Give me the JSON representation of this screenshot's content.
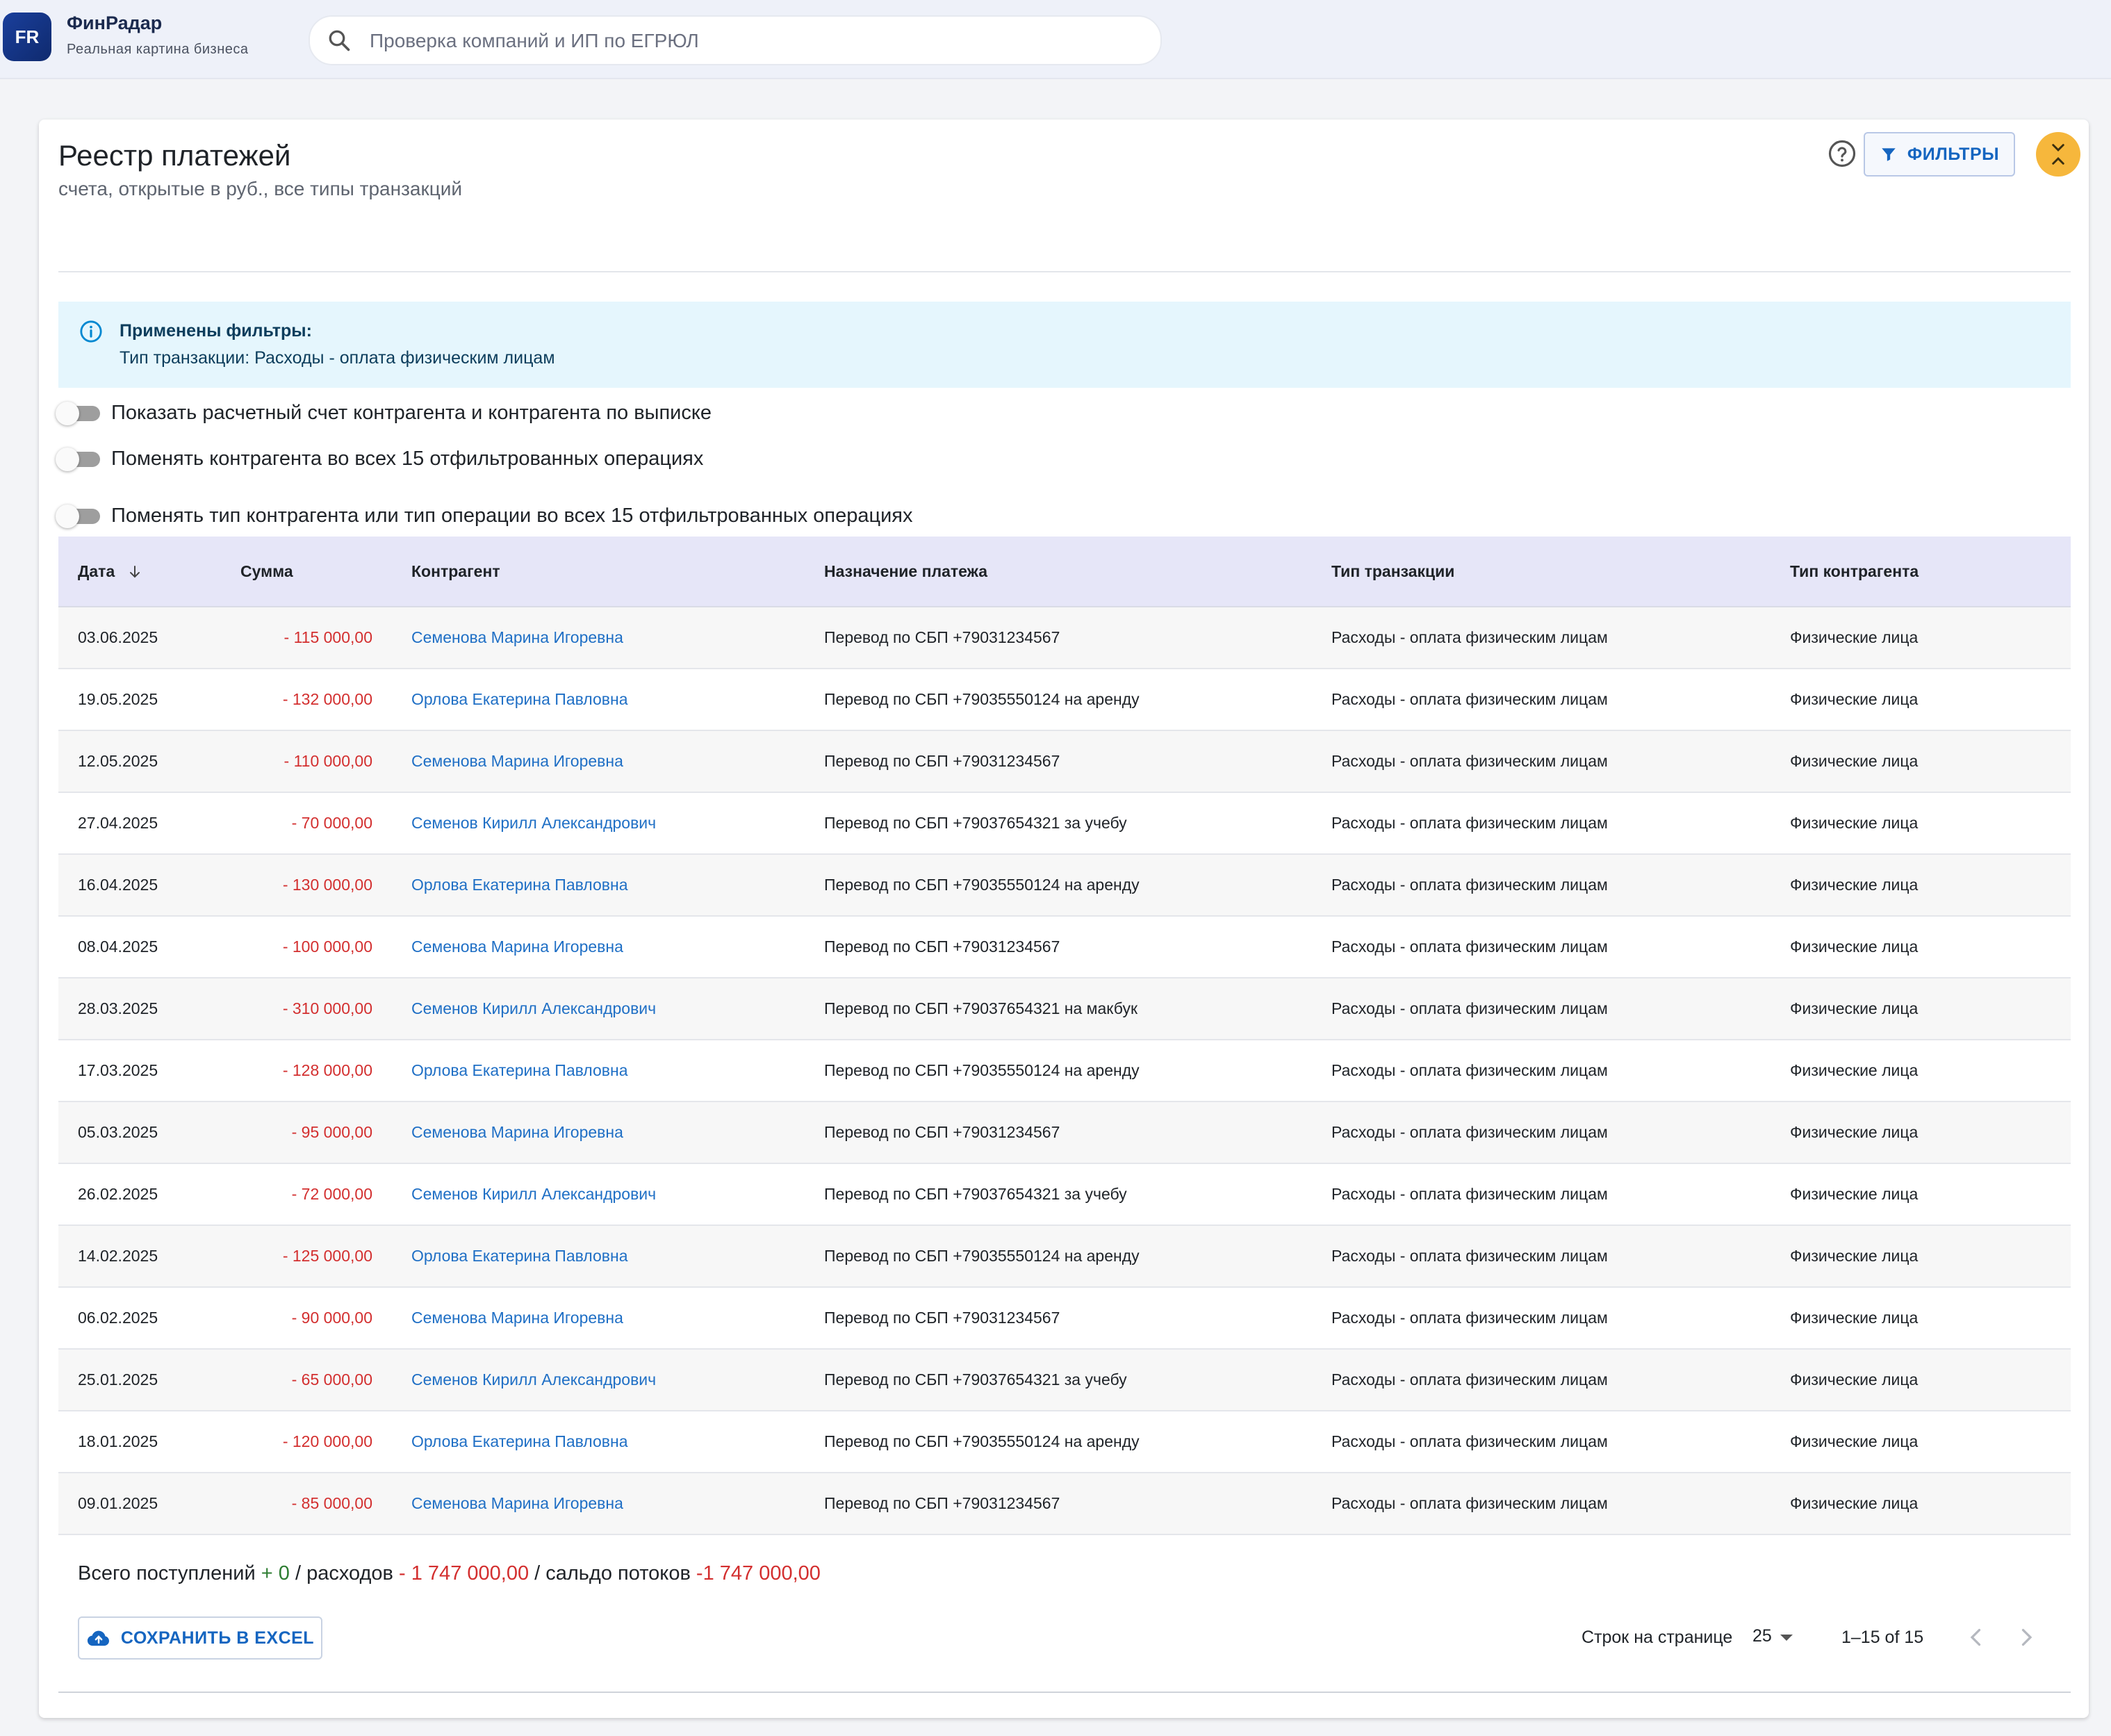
{
  "app": {
    "logo_text": "FR",
    "name": "ФинРадар",
    "tagline": "Реальная картина бизнеса"
  },
  "search": {
    "placeholder": "Проверка компаний и ИП по ЕГРЮЛ",
    "value": ""
  },
  "page": {
    "title": "Реестр платежей",
    "subtitle": "счета, открытые в руб., все типы транзакций",
    "filters_button": "ФИЛЬТРЫ"
  },
  "alert": {
    "title": "Применены фильтры:",
    "text": "Тип транзакции: Расходы - оплата физическим лицам"
  },
  "toggles": [
    {
      "label": "Показать расчетный счет контрагента и контрагента по выписке",
      "on": false
    },
    {
      "label": "Поменять контрагента во всех 15 отфильтрованных операциях",
      "on": false
    },
    {
      "label": "Поменять тип контрагента или тип операции во всех 15 отфильтрованных операциях",
      "on": false
    }
  ],
  "table": {
    "headers": {
      "date": "Дата",
      "amount": "Сумма",
      "counterparty": "Контрагент",
      "purpose": "Назначение платежа",
      "tx_type": "Тип транзакции",
      "party_type": "Тип контрагента"
    },
    "rows": [
      {
        "date": "03.06.2025",
        "amount": "- 115 000,00",
        "counterparty": "Семенова Марина Игоревна",
        "purpose": "Перевод по СБП +79031234567",
        "tx_type": "Расходы - оплата физическим лицам",
        "party_type": "Физические лица"
      },
      {
        "date": "19.05.2025",
        "amount": "- 132 000,00",
        "counterparty": "Орлова Екатерина Павловна",
        "purpose": "Перевод по СБП +79035550124 на аренду",
        "tx_type": "Расходы - оплата физическим лицам",
        "party_type": "Физические лица"
      },
      {
        "date": "12.05.2025",
        "amount": "- 110 000,00",
        "counterparty": "Семенова Марина Игоревна",
        "purpose": "Перевод по СБП +79031234567",
        "tx_type": "Расходы - оплата физическим лицам",
        "party_type": "Физические лица"
      },
      {
        "date": "27.04.2025",
        "amount": "- 70 000,00",
        "counterparty": "Семенов Кирилл Александрович",
        "purpose": "Перевод по СБП +79037654321 за учебу",
        "tx_type": "Расходы - оплата физическим лицам",
        "party_type": "Физические лица"
      },
      {
        "date": "16.04.2025",
        "amount": "- 130 000,00",
        "counterparty": "Орлова Екатерина Павловна",
        "purpose": "Перевод по СБП +79035550124 на аренду",
        "tx_type": "Расходы - оплата физическим лицам",
        "party_type": "Физические лица"
      },
      {
        "date": "08.04.2025",
        "amount": "- 100 000,00",
        "counterparty": "Семенова Марина Игоревна",
        "purpose": "Перевод по СБП +79031234567",
        "tx_type": "Расходы - оплата физическим лицам",
        "party_type": "Физические лица"
      },
      {
        "date": "28.03.2025",
        "amount": "- 310 000,00",
        "counterparty": "Семенов Кирилл Александрович",
        "purpose": "Перевод по СБП +79037654321 на макбук",
        "tx_type": "Расходы - оплата физическим лицам",
        "party_type": "Физические лица"
      },
      {
        "date": "17.03.2025",
        "amount": "- 128 000,00",
        "counterparty": "Орлова Екатерина Павловна",
        "purpose": "Перевод по СБП +79035550124 на аренду",
        "tx_type": "Расходы - оплата физическим лицам",
        "party_type": "Физические лица"
      },
      {
        "date": "05.03.2025",
        "amount": "- 95 000,00",
        "counterparty": "Семенова Марина Игоревна",
        "purpose": "Перевод по СБП +79031234567",
        "tx_type": "Расходы - оплата физическим лицам",
        "party_type": "Физические лица"
      },
      {
        "date": "26.02.2025",
        "amount": "- 72 000,00",
        "counterparty": "Семенов Кирилл Александрович",
        "purpose": "Перевод по СБП +79037654321 за учебу",
        "tx_type": "Расходы - оплата физическим лицам",
        "party_type": "Физические лица"
      },
      {
        "date": "14.02.2025",
        "amount": "- 125 000,00",
        "counterparty": "Орлова Екатерина Павловна",
        "purpose": "Перевод по СБП +79035550124 на аренду",
        "tx_type": "Расходы - оплата физическим лицам",
        "party_type": "Физические лица"
      },
      {
        "date": "06.02.2025",
        "amount": "- 90 000,00",
        "counterparty": "Семенова Марина Игоревна",
        "purpose": "Перевод по СБП +79031234567",
        "tx_type": "Расходы - оплата физическим лицам",
        "party_type": "Физические лица"
      },
      {
        "date": "25.01.2025",
        "amount": "- 65 000,00",
        "counterparty": "Семенов Кирилл Александрович",
        "purpose": "Перевод по СБП +79037654321 за учебу",
        "tx_type": "Расходы - оплата физическим лицам",
        "party_type": "Физические лица"
      },
      {
        "date": "18.01.2025",
        "amount": "- 120 000,00",
        "counterparty": "Орлова Екатерина Павловна",
        "purpose": "Перевод по СБП +79035550124 на аренду",
        "tx_type": "Расходы - оплата физическим лицам",
        "party_type": "Физические лица"
      },
      {
        "date": "09.01.2025",
        "amount": "- 85 000,00",
        "counterparty": "Семенова Марина Игоревна",
        "purpose": "Перевод по СБП +79031234567",
        "tx_type": "Расходы - оплата физическим лицам",
        "party_type": "Физические лица"
      }
    ]
  },
  "totals": {
    "income_label": "Всего поступлений",
    "income_value": "+ 0",
    "expense_label": "/ расходов",
    "expense_value": "- 1 747 000,00",
    "balance_label": "/ сальдо потоков",
    "balance_value": "-1 747 000,00"
  },
  "footer": {
    "excel_button": "СОХРАНИТЬ В EXCEL",
    "rows_per_page_label": "Строк на странице",
    "rows_per_page_value": "25",
    "range": "1–15 of 15"
  },
  "colors": {
    "accent": "#1565c0",
    "negative": "#d32f2f",
    "positive": "#2e7d32",
    "header_bg": "#e6e6f8",
    "alert_bg": "#e5f6fd",
    "collapse_button": "#f6b73c"
  },
  "icons": {
    "search": "search-icon",
    "help": "help-circle-icon",
    "filter": "filter-icon",
    "collapse": "collapse-chevrons-icon",
    "info": "info-icon",
    "sort": "arrow-down-icon",
    "cloud": "cloud-upload-icon",
    "prev": "chevron-left-icon",
    "next": "chevron-right-icon"
  }
}
